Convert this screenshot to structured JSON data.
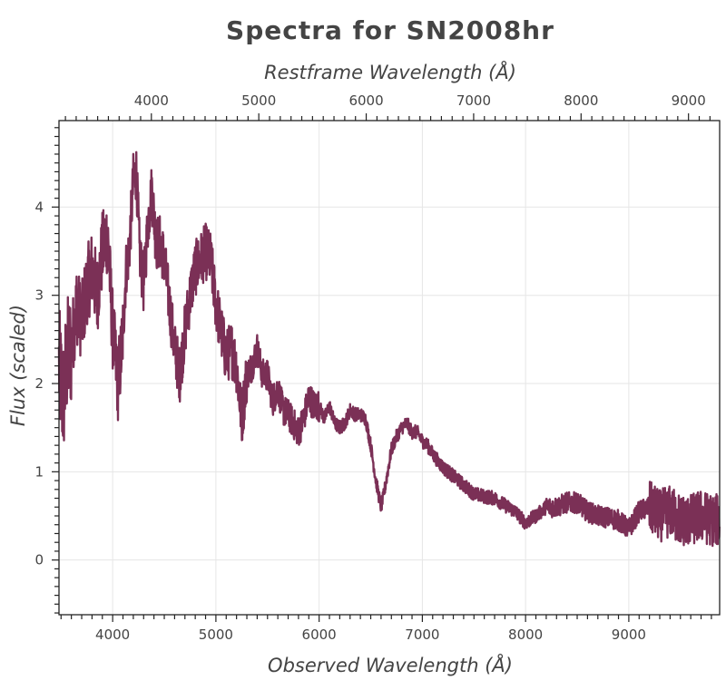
{
  "chart_data": {
    "type": "line",
    "title": "Spectra for SN2008hr",
    "xlabel": "Observed Wavelength (Å)",
    "ylabel": "Flux (scaled)",
    "x2label": "Restframe Wavelength (Å)",
    "xlim": [
      3480,
      9880
    ],
    "ylim": [
      -0.62,
      4.98
    ],
    "xticks": [
      4000,
      5000,
      6000,
      7000,
      8000,
      9000
    ],
    "x2ticks": [
      4000,
      5000,
      6000,
      7000,
      8000,
      9000
    ],
    "yticks": [
      0,
      1,
      2,
      3,
      4
    ],
    "grid": true,
    "color": "#7b3056",
    "series": [
      {
        "x": [
          3480,
          3520,
          3560,
          3600,
          3650,
          3700,
          3750,
          3800,
          3850,
          3900,
          3950,
          4000,
          4050,
          4080,
          4100,
          4130,
          4160,
          4200,
          4230,
          4260,
          4300,
          4340,
          4380,
          4420,
          4460,
          4500,
          4550,
          4600,
          4650,
          4700,
          4750,
          4800,
          4850,
          4900,
          4950,
          5000,
          5050,
          5100,
          5150,
          5200,
          5250,
          5300,
          5350,
          5400,
          5450,
          5500,
          5550,
          5600,
          5650,
          5700,
          5750,
          5800,
          5850,
          5900,
          5950,
          6000,
          6050,
          6100,
          6150,
          6200,
          6250,
          6300,
          6350,
          6400,
          6450,
          6500,
          6550,
          6600,
          6620,
          6650,
          6700,
          6750,
          6800,
          6850,
          6900,
          6950,
          7000,
          7050,
          7100,
          7200,
          7300,
          7400,
          7500,
          7600,
          7700,
          7800,
          7900,
          8000,
          8100,
          8200,
          8300,
          8400,
          8500,
          8600,
          8700,
          8800,
          8900,
          9000,
          9100,
          9200,
          9300,
          9400,
          9500,
          9600,
          9700,
          9800,
          9880
        ],
        "y": [
          2.2,
          1.8,
          2.3,
          2.4,
          2.9,
          2.7,
          3.1,
          3.3,
          3.0,
          3.5,
          3.7,
          2.6,
          2.0,
          2.3,
          2.6,
          3.3,
          3.5,
          4.3,
          4.4,
          3.5,
          3.1,
          3.8,
          4.2,
          3.6,
          3.6,
          3.4,
          2.9,
          2.4,
          2.1,
          2.6,
          3.0,
          3.3,
          3.4,
          3.5,
          3.4,
          2.9,
          2.6,
          2.3,
          2.4,
          2.2,
          1.6,
          2.1,
          2.2,
          2.4,
          2.1,
          2.1,
          1.8,
          1.95,
          1.7,
          1.65,
          1.55,
          1.45,
          1.6,
          1.85,
          1.75,
          1.75,
          1.6,
          1.75,
          1.55,
          1.5,
          1.55,
          1.7,
          1.65,
          1.65,
          1.6,
          1.3,
          0.9,
          0.6,
          0.7,
          0.9,
          1.25,
          1.4,
          1.5,
          1.55,
          1.45,
          1.45,
          1.35,
          1.3,
          1.2,
          1.05,
          0.95,
          0.85,
          0.75,
          0.72,
          0.7,
          0.62,
          0.55,
          0.42,
          0.5,
          0.6,
          0.6,
          0.65,
          0.65,
          0.55,
          0.5,
          0.48,
          0.45,
          0.35,
          0.55,
          0.6,
          0.5,
          0.55,
          0.45,
          0.45,
          0.5,
          0.45,
          0.45
        ]
      }
    ]
  }
}
